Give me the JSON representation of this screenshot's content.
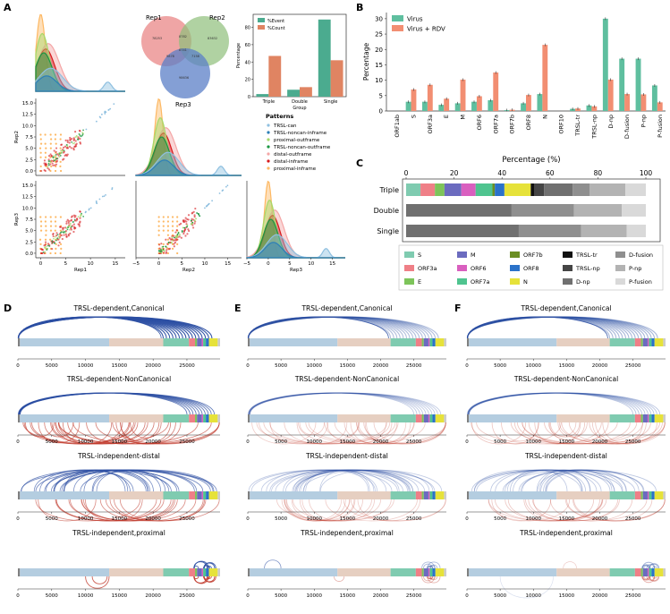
{
  "panel_labels": {
    "a": "A",
    "b": "B",
    "c": "C",
    "d": "D",
    "e": "E",
    "f": "F"
  },
  "panel_a": {
    "venn": {
      "sets": [
        {
          "name": "Rep1",
          "color": "#e87f7f"
        },
        {
          "name": "Rep2",
          "color": "#8fbf7a"
        },
        {
          "name": "Rep3",
          "color": "#5b7fc7"
        }
      ],
      "regions": [
        "78253",
        "8782",
        "83632",
        "8741",
        "9878",
        "7158",
        "98636"
      ]
    },
    "axis_labels": {
      "rep1": "Rep1",
      "rep2": "Rep2",
      "rep3": "Rep3"
    },
    "scatter_ticks_y": [
      "15.0",
      "12.5",
      "10.0",
      "7.5",
      "5.0",
      "2.5",
      "0.0"
    ],
    "bottom_ticks_rep1": [
      "0",
      "5",
      "10",
      "15"
    ],
    "bottom_ticks_rep2": [
      "−5",
      "0",
      "5",
      "10",
      "15"
    ],
    "bottom_ticks_rep3": [
      "−5",
      "0",
      "5",
      "10",
      "15"
    ],
    "patterns_title": "Patterns",
    "patterns": [
      {
        "name": "TRSL-can",
        "color": "#8fc0e0"
      },
      {
        "name": "TRSL-noncan-inframe",
        "color": "#2c7fb8"
      },
      {
        "name": "proximal-outframe",
        "color": "#a6d96a"
      },
      {
        "name": "TRSL-noncan-outframe",
        "color": "#1a9641"
      },
      {
        "name": "distal-outframe",
        "color": "#f4a6a6"
      },
      {
        "name": "distal-inframe",
        "color": "#d7191c"
      },
      {
        "name": "proximal-inframe",
        "color": "#fdb863"
      }
    ],
    "group_chart": {
      "legend": [
        "%Event",
        "%Count"
      ],
      "colors": [
        "#4bab8f",
        "#e08462"
      ],
      "ylabel": "Percentage",
      "yticks": [
        "0",
        "20",
        "40",
        "60",
        "80"
      ],
      "categories": [
        "Triple",
        "Double",
        "Single"
      ],
      "xlabel": "Group",
      "event": [
        3,
        8,
        89
      ],
      "count": [
        47,
        11,
        42
      ]
    }
  },
  "chart_data": [
    {
      "type": "bar",
      "ylabel": "Percentage",
      "ylim": [
        0,
        32
      ],
      "yticks": [
        "0",
        "5",
        "10",
        "15",
        "20",
        "25",
        "30"
      ],
      "categories": [
        "ORF1ab",
        "S",
        "ORF3a",
        "E",
        "M",
        "ORF6",
        "ORF7a",
        "ORF7b",
        "ORF8",
        "N",
        "ORF10",
        "TRSL-tr",
        "TRSL-np",
        "D-np",
        "D-fusion",
        "P-np",
        "P-fusion"
      ],
      "series": [
        {
          "name": "Virus",
          "color": "#5fbf9f",
          "values": [
            0,
            3,
            3,
            2,
            2.5,
            3,
            3.5,
            0.3,
            2.5,
            5.5,
            0,
            0.7,
            1.8,
            30,
            17,
            17,
            8.3
          ]
        },
        {
          "name": "Virus + RDV",
          "color": "#f28e72",
          "values": [
            0,
            7,
            8.5,
            4,
            10.2,
            4.8,
            12.5,
            0.4,
            5.2,
            21.5,
            0,
            0.8,
            1.5,
            10.2,
            5.5,
            5.4,
            2.8
          ]
        }
      ],
      "legend": "top-left"
    },
    {
      "type": "bar",
      "xlabel": "Percentage (%)",
      "xticks": [
        "0",
        "20",
        "40",
        "60",
        "80",
        "100"
      ],
      "categories": [
        "Triple",
        "Double",
        "Single"
      ],
      "segments": [
        [
          {
            "name": "S",
            "value": 6
          },
          {
            "name": "ORF3a",
            "value": 6
          },
          {
            "name": "E",
            "value": 4
          },
          {
            "name": "M",
            "value": 7
          },
          {
            "name": "ORF6",
            "value": 6
          },
          {
            "name": "ORF7a",
            "value": 7
          },
          {
            "name": "ORF7b",
            "value": 1
          },
          {
            "name": "ORF8",
            "value": 4
          },
          {
            "name": "N",
            "value": 11
          },
          {
            "name": "TRSL-tr",
            "value": 1.5
          },
          {
            "name": "TRSL-np",
            "value": 4
          },
          {
            "name": "D-np",
            "value": 12
          },
          {
            "name": "D-fusion",
            "value": 7
          },
          {
            "name": "P-np",
            "value": 15
          },
          {
            "name": "P-fusion",
            "value": 8.5
          }
        ],
        [
          {
            "name": "D-np",
            "value": 44
          },
          {
            "name": "D-fusion",
            "value": 26
          },
          {
            "name": "P-np",
            "value": 20
          },
          {
            "name": "P-fusion",
            "value": 10
          }
        ],
        [
          {
            "name": "D-np",
            "value": 47
          },
          {
            "name": "D-fusion",
            "value": 26
          },
          {
            "name": "P-np",
            "value": 19
          },
          {
            "name": "P-fusion",
            "value": 8
          }
        ]
      ],
      "legend_items": [
        {
          "name": "S",
          "color": "#7fcbb0"
        },
        {
          "name": "ORF3a",
          "color": "#ef7f87"
        },
        {
          "name": "E",
          "color": "#7dc45a"
        },
        {
          "name": "M",
          "color": "#6b6bbf"
        },
        {
          "name": "ORF6",
          "color": "#d95fbf"
        },
        {
          "name": "ORF7a",
          "color": "#4fc48f"
        },
        {
          "name": "ORF7b",
          "color": "#6b8e23"
        },
        {
          "name": "ORF8",
          "color": "#2b72c9"
        },
        {
          "name": "N",
          "color": "#e6e23a"
        },
        {
          "name": "TRSL-tr",
          "color": "#111111"
        },
        {
          "name": "TRSL-np",
          "color": "#454545"
        },
        {
          "name": "D-np",
          "color": "#707070"
        },
        {
          "name": "D-fusion",
          "color": "#8f8f8f"
        },
        {
          "name": "P-np",
          "color": "#b3b3b3"
        },
        {
          "name": "P-fusion",
          "color": "#d9d9d9"
        }
      ]
    }
  ],
  "arc_panels": {
    "titles": [
      "TRSL-dependent,Canonical",
      "TRSL-dependent-NonCanonical",
      "TRSL-independent-distal",
      "TRSL-independent,proximal"
    ],
    "ticks": [
      "0",
      "5000",
      "10000",
      "15000",
      "20000",
      "25000"
    ],
    "genome_length": 29900,
    "genome_segments": [
      {
        "start": 0,
        "end": 300,
        "color": "#808080"
      },
      {
        "start": 300,
        "end": 13500,
        "color": "#b4cde0"
      },
      {
        "start": 13500,
        "end": 21500,
        "color": "#e6cfc1"
      },
      {
        "start": 21500,
        "end": 25300,
        "color": "#7fcbb0"
      },
      {
        "start": 25300,
        "end": 26200,
        "color": "#ef7f87"
      },
      {
        "start": 26200,
        "end": 26500,
        "color": "#7dc45a"
      },
      {
        "start": 26500,
        "end": 27200,
        "color": "#6b6bbf"
      },
      {
        "start": 27200,
        "end": 27400,
        "color": "#d95fbf"
      },
      {
        "start": 27400,
        "end": 27800,
        "color": "#4fc48f"
      },
      {
        "start": 27800,
        "end": 28250,
        "color": "#2b72c9"
      },
      {
        "start": 28250,
        "end": 29550,
        "color": "#e6e23a"
      },
      {
        "start": 29550,
        "end": 29900,
        "color": "#cccccc"
      }
    ],
    "colors": {
      "blue": "#2c4fa3",
      "red": "#c0392b"
    }
  }
}
